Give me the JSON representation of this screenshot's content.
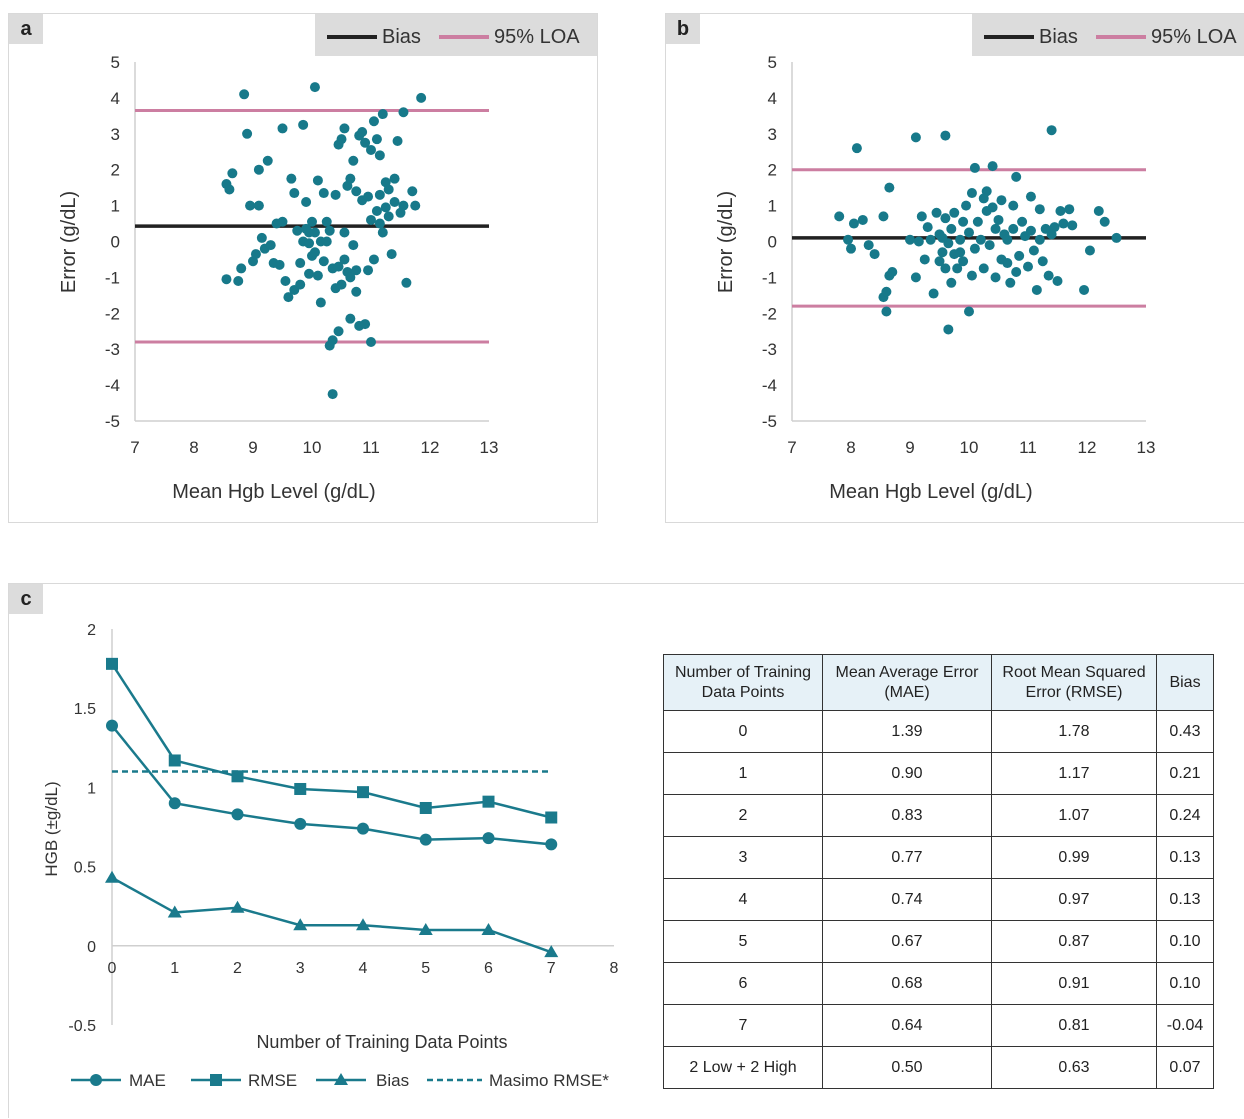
{
  "panels": [
    {
      "label": "a",
      "legend": [
        {
          "name": "Bias",
          "color": "#222222"
        },
        {
          "name": "95% LOA",
          "color": "#cc7ea1"
        }
      ],
      "chart_data": {
        "type": "scatter",
        "xlabel": "Mean Hgb Level (g/dL)",
        "ylabel": "Error (g/dL)",
        "xlim": [
          7,
          13
        ],
        "ylim": [
          -5,
          5
        ],
        "xticks": [
          7,
          8,
          9,
          10,
          11,
          12,
          13
        ],
        "yticks": [
          5,
          4,
          3,
          2,
          1,
          0,
          -1,
          -2,
          -3,
          -4,
          -5
        ],
        "bias": 0.43,
        "loa": [
          3.65,
          -2.8
        ],
        "points": [
          [
            8.55,
            1.6
          ],
          [
            8.6,
            1.45
          ],
          [
            8.65,
            1.9
          ],
          [
            8.55,
            -1.05
          ],
          [
            8.75,
            -1.1
          ],
          [
            8.8,
            -0.75
          ],
          [
            8.85,
            4.1
          ],
          [
            8.9,
            3.0
          ],
          [
            8.95,
            1.0
          ],
          [
            9.0,
            -0.55
          ],
          [
            9.05,
            -0.35
          ],
          [
            9.1,
            2.0
          ],
          [
            9.1,
            1.0
          ],
          [
            9.15,
            0.1
          ],
          [
            9.2,
            -0.2
          ],
          [
            9.25,
            2.25
          ],
          [
            9.3,
            -0.1
          ],
          [
            9.35,
            -0.6
          ],
          [
            9.4,
            0.5
          ],
          [
            9.45,
            -0.65
          ],
          [
            9.5,
            3.15
          ],
          [
            9.5,
            0.55
          ],
          [
            9.55,
            -1.1
          ],
          [
            9.6,
            -1.55
          ],
          [
            9.65,
            1.75
          ],
          [
            9.7,
            1.35
          ],
          [
            9.7,
            -1.35
          ],
          [
            9.75,
            0.3
          ],
          [
            9.8,
            -0.6
          ],
          [
            9.8,
            -1.2
          ],
          [
            9.85,
            3.25
          ],
          [
            9.85,
            0.0
          ],
          [
            9.9,
            1.1
          ],
          [
            9.9,
            0.35
          ],
          [
            9.95,
            -0.9
          ],
          [
            9.95,
            0.25
          ],
          [
            10.0,
            0.55
          ],
          [
            10.0,
            -0.4
          ],
          [
            10.05,
            4.3
          ],
          [
            10.05,
            0.25
          ],
          [
            10.1,
            1.7
          ],
          [
            10.1,
            -0.95
          ],
          [
            10.15,
            -1.7
          ],
          [
            10.15,
            0.0
          ],
          [
            10.2,
            1.35
          ],
          [
            10.2,
            -0.55
          ],
          [
            10.25,
            0.0
          ],
          [
            10.3,
            -2.9
          ],
          [
            10.3,
            0.3
          ],
          [
            10.35,
            -2.75
          ],
          [
            10.35,
            -0.75
          ],
          [
            10.4,
            1.3
          ],
          [
            10.4,
            -1.3
          ],
          [
            10.45,
            2.7
          ],
          [
            10.45,
            -0.7
          ],
          [
            10.5,
            2.85
          ],
          [
            10.5,
            -1.2
          ],
          [
            10.55,
            3.15
          ],
          [
            10.55,
            -0.5
          ],
          [
            10.6,
            1.55
          ],
          [
            10.6,
            -0.85
          ],
          [
            10.65,
            1.75
          ],
          [
            10.65,
            -2.15
          ],
          [
            10.7,
            2.25
          ],
          [
            10.7,
            -0.1
          ],
          [
            10.75,
            1.4
          ],
          [
            10.75,
            -0.8
          ],
          [
            10.8,
            2.95
          ],
          [
            10.8,
            -2.35
          ],
          [
            10.85,
            3.05
          ],
          [
            10.85,
            1.15
          ],
          [
            10.9,
            2.75
          ],
          [
            10.9,
            -2.3
          ],
          [
            10.95,
            1.25
          ],
          [
            10.95,
            -0.8
          ],
          [
            11.0,
            2.55
          ],
          [
            11.0,
            0.6
          ],
          [
            11.05,
            3.35
          ],
          [
            11.05,
            -0.5
          ],
          [
            11.1,
            2.85
          ],
          [
            11.1,
            0.85
          ],
          [
            11.15,
            2.4
          ],
          [
            11.15,
            0.5
          ],
          [
            11.2,
            3.55
          ],
          [
            11.2,
            0.25
          ],
          [
            11.25,
            1.65
          ],
          [
            11.25,
            0.95
          ],
          [
            11.3,
            1.45
          ],
          [
            11.35,
            -0.35
          ],
          [
            11.4,
            1.75
          ],
          [
            11.4,
            1.1
          ],
          [
            11.45,
            2.8
          ],
          [
            11.5,
            0.8
          ],
          [
            11.55,
            3.6
          ],
          [
            11.55,
            1.0
          ],
          [
            11.6,
            -1.15
          ],
          [
            11.7,
            1.4
          ],
          [
            11.75,
            1.0
          ],
          [
            11.85,
            4.0
          ],
          [
            10.35,
            -4.25
          ],
          [
            11.0,
            -2.8
          ],
          [
            10.45,
            -2.5
          ],
          [
            11.3,
            0.7
          ],
          [
            11.15,
            1.3
          ],
          [
            9.95,
            -0.05
          ],
          [
            10.05,
            -0.3
          ],
          [
            10.25,
            0.55
          ],
          [
            10.55,
            0.25
          ],
          [
            10.65,
            -1.0
          ],
          [
            10.75,
            -1.4
          ]
        ]
      }
    },
    {
      "label": "b",
      "legend": [
        {
          "name": "Bias",
          "color": "#222222"
        },
        {
          "name": "95% LOA",
          "color": "#cc7ea1"
        }
      ],
      "chart_data": {
        "type": "scatter",
        "xlabel": "Mean Hgb Level (g/dL)",
        "ylabel": "Error (g/dL)",
        "xlim": [
          7,
          13
        ],
        "ylim": [
          -5,
          5
        ],
        "xticks": [
          7,
          8,
          9,
          10,
          11,
          12,
          13
        ],
        "yticks": [
          5,
          4,
          3,
          2,
          1,
          0,
          -1,
          -2,
          -3,
          -4,
          -5
        ],
        "bias": 0.1,
        "loa": [
          2.0,
          -1.8
        ],
        "points": [
          [
            7.8,
            0.7
          ],
          [
            7.95,
            0.05
          ],
          [
            8.0,
            -0.2
          ],
          [
            8.05,
            0.5
          ],
          [
            8.1,
            2.6
          ],
          [
            8.2,
            0.6
          ],
          [
            8.3,
            -0.1
          ],
          [
            8.4,
            -0.35
          ],
          [
            8.55,
            0.7
          ],
          [
            8.55,
            -1.55
          ],
          [
            8.6,
            -1.4
          ],
          [
            8.6,
            -1.95
          ],
          [
            8.65,
            1.5
          ],
          [
            8.65,
            -0.95
          ],
          [
            8.7,
            -0.85
          ],
          [
            9.0,
            0.05
          ],
          [
            9.1,
            2.9
          ],
          [
            9.1,
            -1.0
          ],
          [
            9.15,
            0.0
          ],
          [
            9.2,
            0.7
          ],
          [
            9.25,
            -0.5
          ],
          [
            9.3,
            0.4
          ],
          [
            9.35,
            0.05
          ],
          [
            9.4,
            -1.45
          ],
          [
            9.45,
            0.8
          ],
          [
            9.5,
            -0.55
          ],
          [
            9.5,
            0.2
          ],
          [
            9.55,
            -0.3
          ],
          [
            9.6,
            2.95
          ],
          [
            9.6,
            0.65
          ],
          [
            9.6,
            -0.75
          ],
          [
            9.65,
            -0.05
          ],
          [
            9.65,
            -2.45
          ],
          [
            9.7,
            0.35
          ],
          [
            9.7,
            -1.15
          ],
          [
            9.75,
            0.8
          ],
          [
            9.8,
            -0.75
          ],
          [
            9.85,
            0.05
          ],
          [
            9.9,
            0.55
          ],
          [
            9.9,
            -0.55
          ],
          [
            9.95,
            1.0
          ],
          [
            10.0,
            0.25
          ],
          [
            10.0,
            -1.95
          ],
          [
            10.05,
            1.35
          ],
          [
            10.05,
            -0.95
          ],
          [
            10.1,
            2.05
          ],
          [
            10.1,
            -0.2
          ],
          [
            10.15,
            0.55
          ],
          [
            10.2,
            0.05
          ],
          [
            10.25,
            -0.75
          ],
          [
            10.3,
            0.85
          ],
          [
            10.3,
            1.4
          ],
          [
            10.35,
            -0.1
          ],
          [
            10.4,
            2.1
          ],
          [
            10.4,
            0.95
          ],
          [
            10.45,
            0.35
          ],
          [
            10.45,
            -1.0
          ],
          [
            10.5,
            0.6
          ],
          [
            10.55,
            1.15
          ],
          [
            10.55,
            -0.5
          ],
          [
            10.6,
            0.2
          ],
          [
            10.65,
            -0.6
          ],
          [
            10.7,
            -1.15
          ],
          [
            10.75,
            1.0
          ],
          [
            10.75,
            0.35
          ],
          [
            10.8,
            1.8
          ],
          [
            10.8,
            -0.85
          ],
          [
            10.85,
            -0.4
          ],
          [
            10.9,
            0.55
          ],
          [
            10.95,
            0.15
          ],
          [
            11.0,
            -0.7
          ],
          [
            11.05,
            1.25
          ],
          [
            11.05,
            0.3
          ],
          [
            11.1,
            -0.25
          ],
          [
            11.15,
            -1.35
          ],
          [
            11.2,
            0.9
          ],
          [
            11.2,
            0.05
          ],
          [
            11.25,
            -0.55
          ],
          [
            11.3,
            0.35
          ],
          [
            11.35,
            -0.95
          ],
          [
            11.4,
            3.1
          ],
          [
            11.4,
            0.2
          ],
          [
            11.45,
            0.4
          ],
          [
            11.5,
            -1.1
          ],
          [
            11.55,
            0.85
          ],
          [
            11.6,
            0.5
          ],
          [
            11.7,
            0.9
          ],
          [
            11.75,
            0.45
          ],
          [
            12.05,
            -0.25
          ],
          [
            12.2,
            0.85
          ],
          [
            12.3,
            0.55
          ],
          [
            12.5,
            0.1
          ],
          [
            11.95,
            -1.35
          ],
          [
            9.85,
            -0.3
          ],
          [
            10.25,
            1.2
          ],
          [
            10.65,
            0.05
          ],
          [
            9.55,
            0.1
          ],
          [
            9.75,
            -0.35
          ]
        ]
      }
    }
  ],
  "panel_c": {
    "label": "c",
    "chart_data": {
      "type": "line",
      "xlabel": "Number of Training Data Points",
      "ylabel": "HGB (±g/dL)",
      "xlim": [
        0,
        8
      ],
      "ylim": [
        -0.5,
        2
      ],
      "xticks": [
        0,
        1,
        2,
        3,
        4,
        5,
        6,
        7,
        8
      ],
      "yticks": [
        "2",
        "1.5",
        "1",
        "0.5",
        "0",
        "-0.5"
      ],
      "x": [
        0,
        1,
        2,
        3,
        4,
        5,
        6,
        7
      ],
      "series": [
        {
          "name": "MAE",
          "marker": "circle",
          "values": [
            1.39,
            0.9,
            0.83,
            0.77,
            0.74,
            0.67,
            0.68,
            0.64
          ]
        },
        {
          "name": "RMSE",
          "marker": "square",
          "values": [
            1.78,
            1.17,
            1.07,
            0.99,
            0.97,
            0.87,
            0.91,
            0.81
          ]
        },
        {
          "name": "Bias",
          "marker": "triangle",
          "values": [
            0.43,
            0.21,
            0.24,
            0.13,
            0.13,
            0.1,
            0.1,
            -0.04
          ]
        }
      ],
      "reference": {
        "name": "Masimo RMSE*",
        "value": 1.1,
        "x_range": [
          0,
          7
        ]
      },
      "color": "#1a7a8c"
    },
    "table": {
      "headers": [
        "Number of Training Data Points",
        "Mean Average Error (MAE)",
        "Root Mean Squared Error (RMSE)",
        "Bias"
      ],
      "rows": [
        [
          "0",
          "1.39",
          "1.78",
          "0.43"
        ],
        [
          "1",
          "0.90",
          "1.17",
          "0.21"
        ],
        [
          "2",
          "0.83",
          "1.07",
          "0.24"
        ],
        [
          "3",
          "0.77",
          "0.99",
          "0.13"
        ],
        [
          "4",
          "0.74",
          "0.97",
          "0.13"
        ],
        [
          "5",
          "0.67",
          "0.87",
          "0.10"
        ],
        [
          "6",
          "0.68",
          "0.91",
          "0.10"
        ],
        [
          "7",
          "0.64",
          "0.81",
          "-0.04"
        ],
        [
          "2 Low + 2 High",
          "0.50",
          "0.63",
          "0.07"
        ]
      ]
    }
  }
}
